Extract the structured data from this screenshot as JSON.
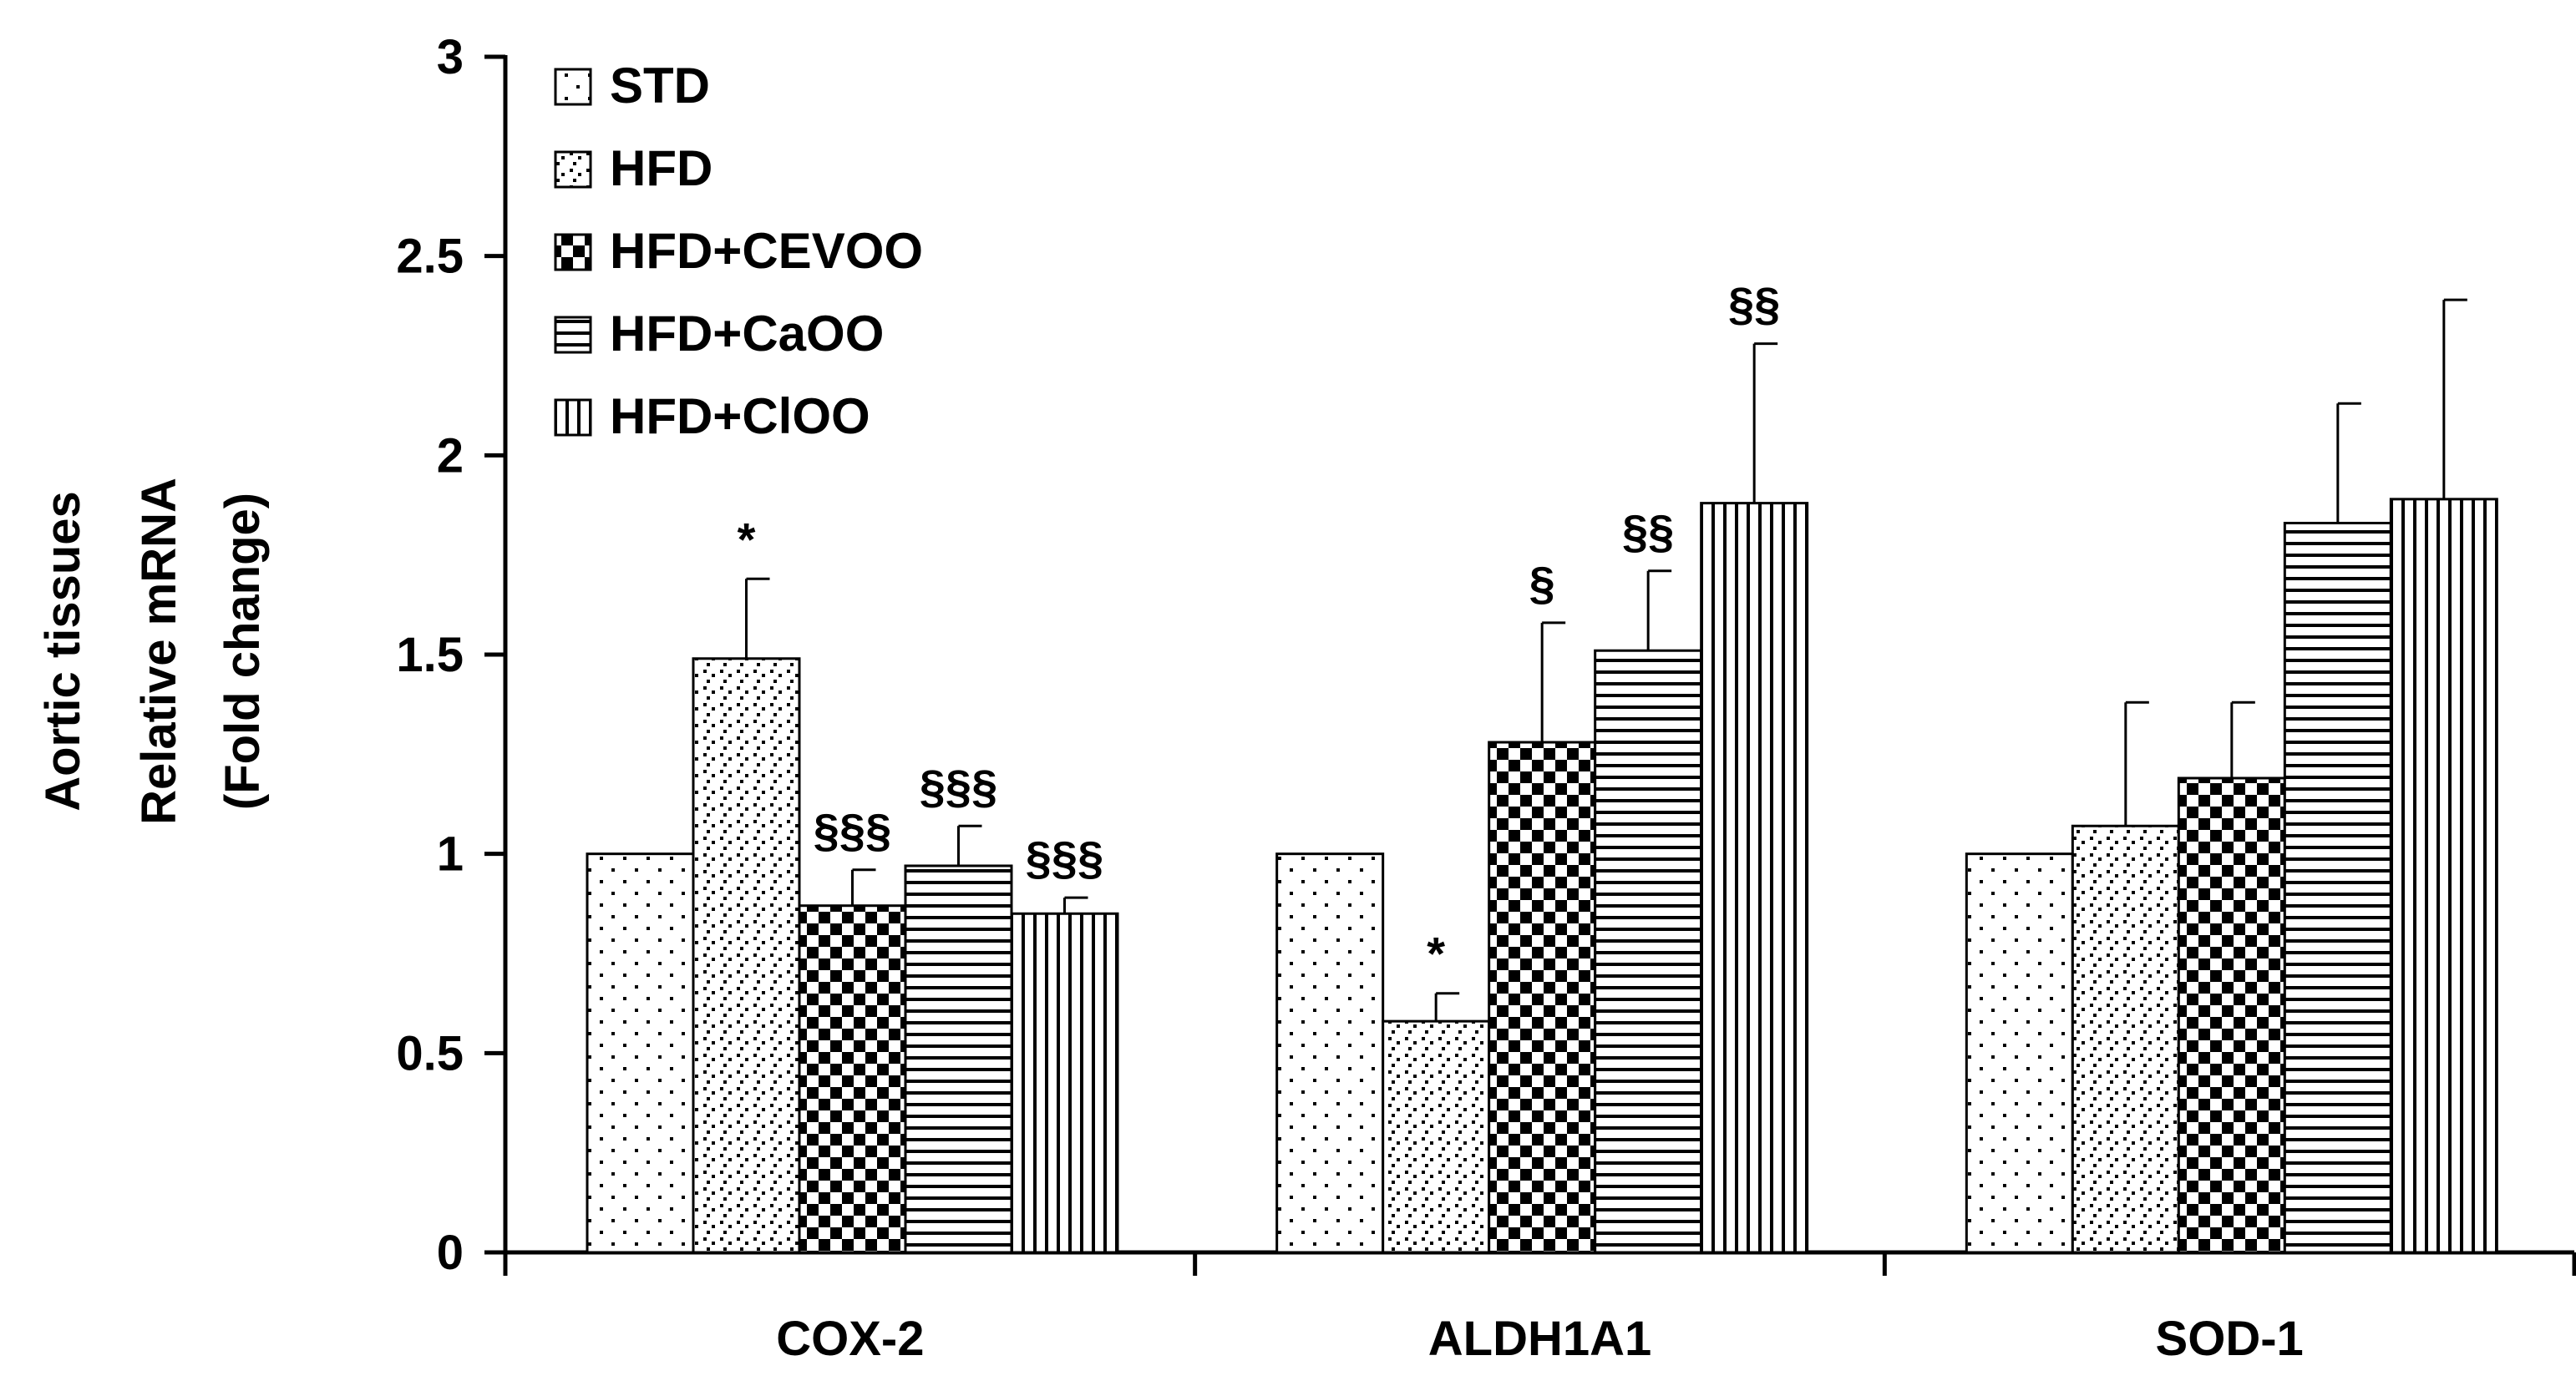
{
  "chart_data": {
    "type": "bar",
    "ylabel_lines": [
      "Aortic tissues",
      "Relative mRNA",
      "(Fold change)"
    ],
    "ylim": [
      0,
      3
    ],
    "yticks": [
      0,
      0.5,
      1,
      1.5,
      2,
      2.5,
      3
    ],
    "ytick_labels": [
      "0",
      "0.5",
      "1",
      "1.5",
      "2",
      "2.5",
      "3"
    ],
    "categories": [
      "COX-2",
      "ALDH1A1",
      "SOD-1"
    ],
    "legend_position": "top-left",
    "series": [
      {
        "name": "STD",
        "pattern": "sparse-dots",
        "values": [
          1.0,
          1.0,
          1.0
        ],
        "errors": [
          null,
          null,
          null
        ],
        "annotations": [
          "",
          "",
          ""
        ]
      },
      {
        "name": "HFD",
        "pattern": "dense-dots",
        "values": [
          1.49,
          0.58,
          1.07
        ],
        "errors": [
          0.2,
          0.07,
          0.31
        ],
        "annotations": [
          "*",
          "*",
          ""
        ]
      },
      {
        "name": "HFD+CEVOO",
        "pattern": "checker",
        "values": [
          0.87,
          1.28,
          1.19
        ],
        "errors": [
          0.09,
          0.3,
          0.19
        ],
        "annotations": [
          "§§§",
          "§",
          ""
        ]
      },
      {
        "name": "HFD+CaOO",
        "pattern": "horizontal-lines",
        "values": [
          0.97,
          1.51,
          1.83
        ],
        "errors": [
          0.1,
          0.2,
          0.3
        ],
        "annotations": [
          "§§§",
          "§§",
          ""
        ]
      },
      {
        "name": "HFD+ClOO",
        "pattern": "vertical-lines",
        "values": [
          0.85,
          1.88,
          1.89
        ],
        "errors": [
          0.04,
          0.4,
          0.5
        ],
        "annotations": [
          "§§§",
          "§§",
          ""
        ]
      }
    ]
  }
}
